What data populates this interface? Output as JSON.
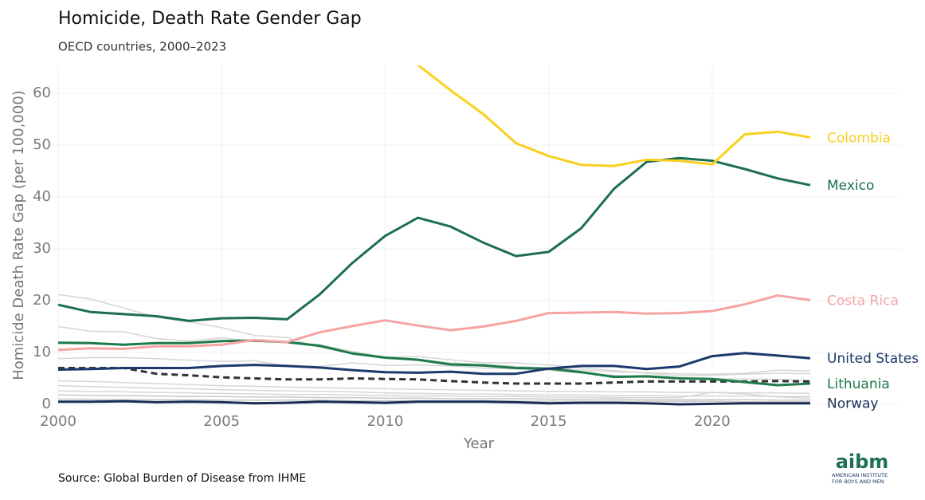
{
  "chart_data": {
    "type": "line",
    "title": "Homicide, Death Rate Gender Gap",
    "subtitle": "OECD countries, 2000–2023",
    "x_label": "Year",
    "y_label": "Homicide Death Rate Gap (per 100,000)",
    "source": "Source: Global Burden of Disease from IHME",
    "x": [
      2000,
      2001,
      2002,
      2003,
      2004,
      2005,
      2006,
      2007,
      2008,
      2009,
      2010,
      2011,
      2012,
      2013,
      2014,
      2015,
      2016,
      2017,
      2018,
      2019,
      2020,
      2021,
      2022,
      2023
    ],
    "xlim": [
      2000,
      2023
    ],
    "xticks": [
      2000,
      2005,
      2010,
      2015,
      2020
    ],
    "ylim": [
      -1,
      65.4
    ],
    "yticks": [
      0,
      10,
      20,
      30,
      40,
      50,
      60
    ],
    "grid": true,
    "series": [
      {
        "color": "#d6d6d6",
        "values": [
          21.2,
          20.3,
          18.6,
          16.8,
          15.9,
          14.8,
          13.3,
          12.9,
          11.0,
          9.8,
          9.0,
          8.6,
          8.0,
          7.7,
          7.3,
          7.0,
          6.6,
          6.3,
          6.1,
          5.9,
          5.8,
          6.0,
          6.6,
          6.4
        ]
      },
      {
        "color": "#d6d6d6",
        "values": [
          15.0,
          14.1,
          14.0,
          12.7,
          12.2,
          12.8,
          12.2,
          11.9,
          11.5,
          10.2,
          9.1,
          9.2,
          8.6,
          8.0,
          8.0,
          7.6,
          7.0,
          6.5,
          6.0,
          5.5,
          5.6,
          5.8,
          6.0,
          5.9
        ]
      },
      {
        "color": "#d6d6d6",
        "values": [
          8.8,
          9.0,
          9.0,
          8.8,
          8.5,
          8.3,
          8.4,
          7.4,
          7.3,
          8.0,
          7.5,
          7.6,
          7.4,
          7.0,
          6.8,
          6.6,
          6.0,
          5.6,
          5.2,
          5.0,
          4.9,
          4.9,
          4.8,
          4.6
        ]
      },
      {
        "color": "#d6d6d6",
        "values": [
          4.5,
          4.4,
          4.2,
          4.0,
          3.8,
          3.6,
          3.5,
          3.3,
          3.2,
          3.1,
          3.0,
          2.9,
          2.8,
          2.7,
          2.6,
          2.5,
          2.5,
          2.4,
          2.4,
          2.3,
          2.3,
          2.2,
          2.2,
          2.1
        ]
      },
      {
        "color": "#d6d6d6",
        "values": [
          3.6,
          3.4,
          3.3,
          3.1,
          3.0,
          2.8,
          2.7,
          2.6,
          2.5,
          2.4,
          2.2,
          2.1,
          2.0,
          2.0,
          1.9,
          1.8,
          1.8,
          1.7,
          1.7,
          1.6,
          1.6,
          1.6,
          1.5,
          1.5
        ]
      },
      {
        "color": "#d6d6d6",
        "values": [
          2.6,
          2.5,
          2.4,
          2.3,
          2.2,
          2.1,
          2.0,
          1.9,
          1.9,
          1.8,
          1.7,
          1.6,
          1.6,
          1.5,
          1.5,
          1.4,
          1.4,
          1.3,
          1.3,
          1.3,
          2.3,
          2.0,
          1.4,
          1.2
        ]
      },
      {
        "color": "#c8c8c8",
        "values": [
          1.8,
          1.7,
          1.7,
          1.6,
          1.5,
          1.5,
          1.4,
          1.4,
          1.3,
          1.3,
          1.2,
          1.2,
          1.1,
          1.1,
          1.1,
          1.0,
          1.0,
          1.0,
          0.9,
          0.9,
          0.9,
          0.9,
          0.8,
          0.8
        ]
      },
      {
        "color": "#c8c8c8",
        "values": [
          1.0,
          1.0,
          0.9,
          0.9,
          0.9,
          0.8,
          0.8,
          0.8,
          0.8,
          0.7,
          0.7,
          0.7,
          0.7,
          0.7,
          0.6,
          0.6,
          0.6,
          0.6,
          0.6,
          0.6,
          0.6,
          0.5,
          0.5,
          0.5
        ]
      },
      {
        "color": "#333333",
        "dashed": true,
        "values": [
          7.0,
          7.0,
          7.0,
          5.9,
          5.6,
          5.2,
          5.0,
          4.8,
          4.8,
          5.0,
          4.9,
          4.8,
          4.5,
          4.2,
          4.0,
          4.0,
          4.0,
          4.2,
          4.4,
          4.4,
          4.4,
          4.4,
          4.5,
          4.4
        ]
      },
      {
        "name": "Norway",
        "color": "#1a2e55",
        "values": [
          0.5,
          0.5,
          0.6,
          0.4,
          0.5,
          0.4,
          0.2,
          0.3,
          0.5,
          0.4,
          0.3,
          0.5,
          0.5,
          0.5,
          0.4,
          0.2,
          0.3,
          0.3,
          0.2,
          0.0,
          0.1,
          0.2,
          0.2,
          0.2
        ]
      },
      {
        "name": "Lithuania",
        "color": "#1d7a4a",
        "values": [
          11.9,
          11.8,
          11.5,
          11.8,
          11.8,
          12.2,
          12.3,
          12.0,
          11.3,
          9.8,
          9.0,
          8.6,
          7.7,
          7.5,
          7.0,
          6.9,
          6.2,
          5.3,
          5.4,
          5.0,
          4.9,
          4.3,
          3.7,
          4.0
        ]
      },
      {
        "name": "United States",
        "color": "#1a3a6b",
        "values": [
          6.7,
          6.8,
          7.0,
          7.0,
          7.0,
          7.4,
          7.6,
          7.4,
          7.1,
          6.6,
          6.2,
          6.1,
          6.3,
          5.9,
          5.9,
          6.9,
          7.4,
          7.4,
          6.8,
          7.3,
          9.3,
          9.9,
          9.4,
          8.9
        ]
      },
      {
        "name": "Costa Rica",
        "color": "#f6a3a3",
        "values": [
          10.5,
          10.8,
          10.7,
          11.2,
          11.2,
          11.5,
          12.4,
          12.0,
          13.9,
          15.1,
          16.2,
          15.2,
          14.3,
          15.0,
          16.1,
          17.6,
          17.7,
          17.8,
          17.5,
          17.6,
          18.0,
          19.3,
          21.0,
          20.1
        ]
      },
      {
        "name": "Mexico",
        "color": "#1d6f50",
        "values": [
          19.2,
          17.8,
          17.4,
          17.0,
          16.1,
          16.6,
          16.7,
          16.4,
          21.2,
          27.3,
          32.5,
          36.0,
          34.3,
          31.2,
          28.6,
          29.4,
          34.0,
          41.6,
          46.8,
          47.5,
          47.0,
          45.4,
          43.6,
          42.3
        ]
      },
      {
        "name": "Colombia",
        "color": "#f9d01e",
        "values": [
          null,
          null,
          null,
          null,
          null,
          null,
          null,
          null,
          null,
          null,
          null,
          65.5,
          60.6,
          56.0,
          50.4,
          47.9,
          46.2,
          46.0,
          47.2,
          47.0,
          46.3,
          52.1,
          52.6,
          51.5
        ]
      }
    ]
  },
  "logo": {
    "name": "aibm",
    "tagline": [
      "AMERICAN INSTITUTE",
      "FOR BOYS AND MEN"
    ]
  }
}
